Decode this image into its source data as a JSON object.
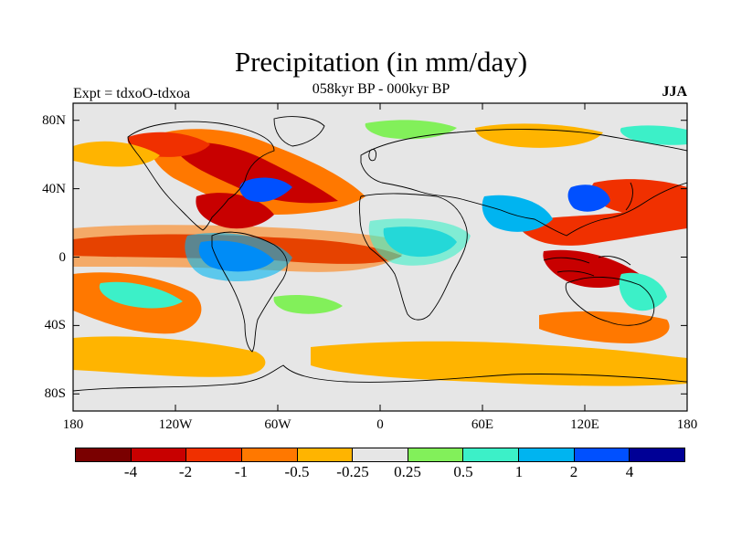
{
  "title": "Precipitation (in mm/day)",
  "subtitle": "058kyr BP - 000kyr BP",
  "experiment": "Expt = tdxoO-tdxoa",
  "season": "JJA",
  "map": {
    "projection": "cylindrical equidistant",
    "lon_range": [
      -180,
      180
    ],
    "lat_range": [
      -90,
      90
    ],
    "y_ticks": [
      {
        "lat": 80,
        "label": "80N"
      },
      {
        "lat": 40,
        "label": "40N"
      },
      {
        "lat": 0,
        "label": "0"
      },
      {
        "lat": -40,
        "label": "40S"
      },
      {
        "lat": -80,
        "label": "80S"
      }
    ],
    "x_ticks": [
      {
        "lon": -180,
        "label": "180"
      },
      {
        "lon": -120,
        "label": "120W"
      },
      {
        "lon": -60,
        "label": "60W"
      },
      {
        "lon": 0,
        "label": "0"
      },
      {
        "lon": 60,
        "label": "60E"
      },
      {
        "lon": 120,
        "label": "120E"
      },
      {
        "lon": 180,
        "label": "180"
      }
    ]
  },
  "colorbar": {
    "colors": [
      "#7a0000",
      "#c80000",
      "#f03000",
      "#ff7800",
      "#ffb400",
      "#e6e6e6",
      "#82f05a",
      "#3cf0c8",
      "#00b4f0",
      "#0050ff",
      "#000096"
    ],
    "labels": [
      "-4",
      "-2",
      "-1",
      "-0.5",
      "-0.25",
      "0.25",
      "0.5",
      "1",
      "2",
      "4"
    ]
  }
}
